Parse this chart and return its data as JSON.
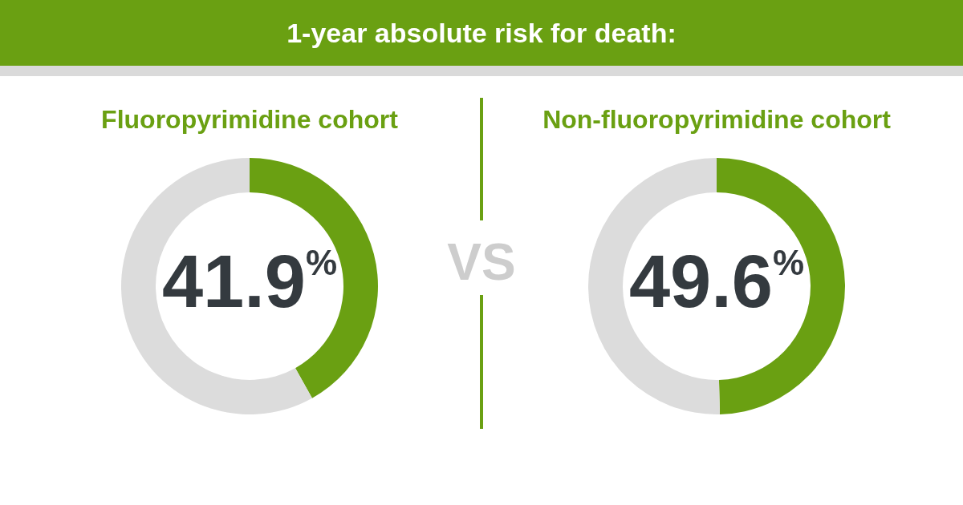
{
  "chart_data": [
    {
      "type": "other",
      "title": "1-year absolute risk for death:",
      "annotations": [
        "VS"
      ]
    },
    {
      "type": "donut",
      "title": "Fluoropyrimidine cohort",
      "categories": [
        null,
        null
      ],
      "values": [
        41.9,
        58.1
      ],
      "colors": [
        "#6aa012",
        "#dcdcdc"
      ],
      "annotations": [
        "41.9%"
      ]
    },
    {
      "type": "donut",
      "title": "Non-fluoropyrimidine cohort",
      "categories": [
        null,
        null
      ],
      "values": [
        49.6,
        50.4
      ],
      "colors": [
        "#6aa012",
        "#dcdcdc"
      ],
      "annotations": [
        "49.6%"
      ]
    }
  ]
}
